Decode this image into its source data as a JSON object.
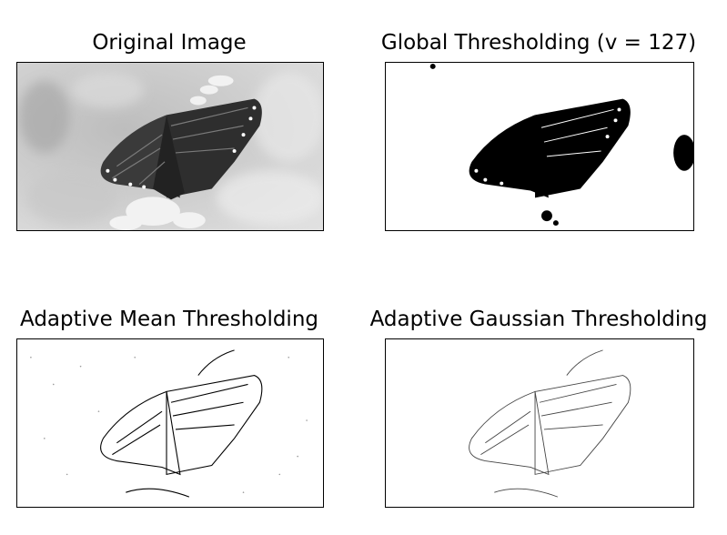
{
  "figure": {
    "panels": [
      {
        "title": "Original Image",
        "content": "grayscale-butterfly-photo"
      },
      {
        "title": "Global Thresholding (v = 127)",
        "content": "binary-global-threshold-butterfly"
      },
      {
        "title": "Adaptive Mean Thresholding",
        "content": "adaptive-mean-edge-butterfly"
      },
      {
        "title": "Adaptive Gaussian Thresholding",
        "content": "adaptive-gaussian-edge-butterfly"
      }
    ]
  },
  "colors": {
    "ink": "#000000",
    "paper": "#ffffff",
    "gray_dark": "#3a3a3a",
    "gray_light": "#d2d2d2"
  }
}
